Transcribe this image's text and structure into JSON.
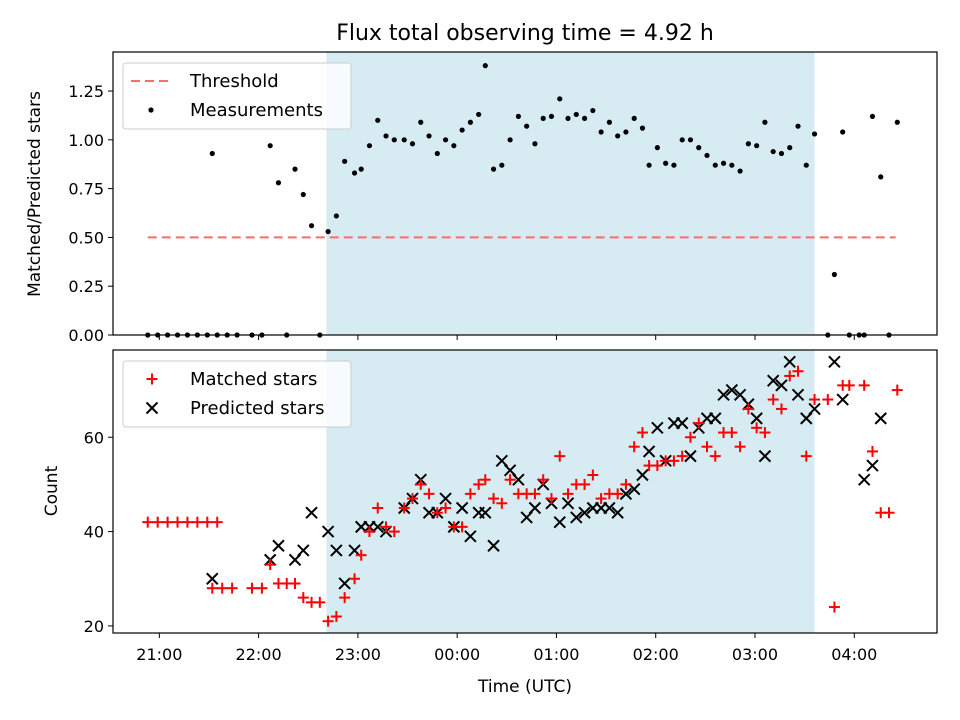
{
  "title": "Flux total observing time = 4.92 h",
  "colors": {
    "threshold": "#ff6b6b",
    "measurement": "#000000",
    "matched": "#ff0000",
    "predicted": "#000000",
    "span": "#add8e6"
  },
  "chart_data": [
    {
      "type": "scatter",
      "ylabel": "Matched/Predicted stars",
      "xlim": [
        "20:32",
        "04:50"
      ],
      "ylim": [
        0,
        1.45
      ],
      "yticks": [
        "0.00",
        "0.25",
        "0.50",
        "0.75",
        "1.00",
        "1.25"
      ],
      "shaded_span": [
        "22:41",
        "03:36"
      ],
      "legend": {
        "position": "top-left",
        "entries": [
          "Threshold",
          "Measurements"
        ]
      },
      "threshold": {
        "name": "Threshold",
        "value": 0.5,
        "x": [
          "20:53",
          "04:25"
        ]
      },
      "series": [
        {
          "name": "Measurements",
          "points": [
            [
              "20:53",
              0.0
            ],
            [
              "20:59",
              0.0
            ],
            [
              "21:05",
              0.0
            ],
            [
              "21:11",
              0.0
            ],
            [
              "21:17",
              0.0
            ],
            [
              "21:23",
              0.0
            ],
            [
              "21:29",
              0.0
            ],
            [
              "21:35",
              0.0
            ],
            [
              "21:32",
              0.93
            ],
            [
              "21:41",
              0.0
            ],
            [
              "21:47",
              0.0
            ],
            [
              "21:56",
              0.0
            ],
            [
              "22:02",
              0.0
            ],
            [
              "22:07",
              0.97
            ],
            [
              "22:12",
              0.78
            ],
            [
              "22:17",
              0.0
            ],
            [
              "22:22",
              0.85
            ],
            [
              "22:27",
              0.72
            ],
            [
              "22:32",
              0.56
            ],
            [
              "22:37",
              0.0
            ],
            [
              "22:42",
              0.53
            ],
            [
              "22:47",
              0.61
            ],
            [
              "22:52",
              0.89
            ],
            [
              "22:58",
              0.83
            ],
            [
              "23:02",
              0.85
            ],
            [
              "23:07",
              0.97
            ],
            [
              "23:12",
              1.1
            ],
            [
              "23:17",
              1.02
            ],
            [
              "23:22",
              1.0
            ],
            [
              "23:28",
              1.0
            ],
            [
              "23:33",
              0.98
            ],
            [
              "23:38",
              1.09
            ],
            [
              "23:43",
              1.02
            ],
            [
              "23:48",
              0.93
            ],
            [
              "23:53",
              1.0
            ],
            [
              "23:58",
              0.97
            ],
            [
              "00:03",
              1.05
            ],
            [
              "00:08",
              1.09
            ],
            [
              "00:13",
              1.13
            ],
            [
              "00:17",
              1.38
            ],
            [
              "00:22",
              0.85
            ],
            [
              "00:27",
              0.87
            ],
            [
              "00:32",
              1.0
            ],
            [
              "00:37",
              1.12
            ],
            [
              "00:42",
              1.07
            ],
            [
              "00:47",
              0.98
            ],
            [
              "00:52",
              1.11
            ],
            [
              "00:57",
              1.12
            ],
            [
              "01:02",
              1.21
            ],
            [
              "01:07",
              1.11
            ],
            [
              "01:12",
              1.13
            ],
            [
              "01:17",
              1.11
            ],
            [
              "01:22",
              1.15
            ],
            [
              "01:27",
              1.04
            ],
            [
              "01:32",
              1.09
            ],
            [
              "01:37",
              1.02
            ],
            [
              "01:42",
              1.04
            ],
            [
              "01:47",
              1.11
            ],
            [
              "01:52",
              1.06
            ],
            [
              "01:56",
              0.87
            ],
            [
              "02:01",
              0.96
            ],
            [
              "02:06",
              0.88
            ],
            [
              "02:11",
              0.87
            ],
            [
              "02:16",
              1.0
            ],
            [
              "02:21",
              1.0
            ],
            [
              "02:26",
              0.96
            ],
            [
              "02:31",
              0.92
            ],
            [
              "02:36",
              0.87
            ],
            [
              "02:41",
              0.88
            ],
            [
              "02:46",
              0.87
            ],
            [
              "02:51",
              0.84
            ],
            [
              "02:56",
              0.98
            ],
            [
              "03:01",
              0.97
            ],
            [
              "03:06",
              1.09
            ],
            [
              "03:11",
              0.94
            ],
            [
              "03:16",
              0.93
            ],
            [
              "03:21",
              0.96
            ],
            [
              "03:26",
              1.07
            ],
            [
              "03:31",
              0.87
            ],
            [
              "03:36",
              1.03
            ],
            [
              "03:44",
              0.0
            ],
            [
              "03:48",
              0.31
            ],
            [
              "03:53",
              1.04
            ],
            [
              "03:57",
              0.0
            ],
            [
              "04:03",
              0.0
            ],
            [
              "04:06",
              0.0
            ],
            [
              "04:11",
              1.12
            ],
            [
              "04:16",
              0.81
            ],
            [
              "04:21",
              0.0
            ],
            [
              "04:26",
              1.09
            ]
          ]
        }
      ]
    },
    {
      "type": "scatter",
      "xlabel": "Time (UTC)",
      "ylabel": "Count",
      "xlim": [
        "20:32",
        "04:50"
      ],
      "ylim": [
        18.5,
        78.5
      ],
      "xticks": [
        "21:00",
        "22:00",
        "23:00",
        "00:00",
        "01:00",
        "02:00",
        "03:00",
        "04:00"
      ],
      "yticks": [
        "20",
        "40",
        "60"
      ],
      "shaded_span": [
        "22:41",
        "03:36"
      ],
      "legend": {
        "position": "top-left",
        "entries": [
          "Matched stars",
          "Predicted stars"
        ]
      },
      "series": [
        {
          "name": "Matched stars",
          "marker": "plus",
          "points": [
            [
              "20:53",
              42
            ],
            [
              "20:59",
              42
            ],
            [
              "21:05",
              42
            ],
            [
              "21:11",
              42
            ],
            [
              "21:17",
              42
            ],
            [
              "21:23",
              42
            ],
            [
              "21:29",
              42
            ],
            [
              "21:35",
              42
            ],
            [
              "21:32",
              28
            ],
            [
              "21:38",
              28
            ],
            [
              "21:44",
              28
            ],
            [
              "21:56",
              28
            ],
            [
              "22:02",
              28
            ],
            [
              "22:07",
              33
            ],
            [
              "22:12",
              29
            ],
            [
              "22:17",
              29
            ],
            [
              "22:22",
              29
            ],
            [
              "22:27",
              26
            ],
            [
              "22:32",
              25
            ],
            [
              "22:37",
              25
            ],
            [
              "22:42",
              21
            ],
            [
              "22:47",
              22
            ],
            [
              "22:52",
              26
            ],
            [
              "22:58",
              30
            ],
            [
              "23:02",
              35
            ],
            [
              "23:07",
              40
            ],
            [
              "23:12",
              45
            ],
            [
              "23:17",
              41
            ],
            [
              "23:22",
              40
            ],
            [
              "23:28",
              45
            ],
            [
              "23:33",
              47
            ],
            [
              "23:38",
              50
            ],
            [
              "23:43",
              48
            ],
            [
              "23:48",
              44
            ],
            [
              "23:53",
              45
            ],
            [
              "23:58",
              41
            ],
            [
              "00:03",
              41
            ],
            [
              "00:08",
              48
            ],
            [
              "00:13",
              50
            ],
            [
              "00:17",
              51
            ],
            [
              "00:22",
              47
            ],
            [
              "00:27",
              46
            ],
            [
              "00:32",
              51
            ],
            [
              "00:37",
              48
            ],
            [
              "00:42",
              48
            ],
            [
              "00:47",
              48
            ],
            [
              "00:52",
              51
            ],
            [
              "00:57",
              47
            ],
            [
              "01:02",
              56
            ],
            [
              "01:07",
              48
            ],
            [
              "01:12",
              50
            ],
            [
              "01:17",
              50
            ],
            [
              "01:22",
              52
            ],
            [
              "01:27",
              47
            ],
            [
              "01:32",
              48
            ],
            [
              "01:37",
              48
            ],
            [
              "01:42",
              50
            ],
            [
              "01:47",
              58
            ],
            [
              "01:52",
              61
            ],
            [
              "01:56",
              54
            ],
            [
              "02:01",
              54
            ],
            [
              "02:06",
              55
            ],
            [
              "02:11",
              55
            ],
            [
              "02:16",
              56
            ],
            [
              "02:21",
              60
            ],
            [
              "02:26",
              63
            ],
            [
              "02:31",
              58
            ],
            [
              "02:36",
              56
            ],
            [
              "02:41",
              61
            ],
            [
              "02:46",
              61
            ],
            [
              "02:51",
              58
            ],
            [
              "02:56",
              66
            ],
            [
              "03:01",
              62
            ],
            [
              "03:06",
              61
            ],
            [
              "03:11",
              68
            ],
            [
              "03:16",
              66
            ],
            [
              "03:21",
              73
            ],
            [
              "03:26",
              74
            ],
            [
              "03:31",
              56
            ],
            [
              "03:36",
              68
            ],
            [
              "03:44",
              68
            ],
            [
              "03:48",
              24
            ],
            [
              "03:53",
              71
            ],
            [
              "03:57",
              71
            ],
            [
              "04:06",
              71
            ],
            [
              "04:11",
              57
            ],
            [
              "04:16",
              44
            ],
            [
              "04:21",
              44
            ],
            [
              "04:26",
              70
            ]
          ]
        },
        {
          "name": "Predicted stars",
          "marker": "x",
          "points": [
            [
              "21:32",
              30
            ],
            [
              "22:07",
              34
            ],
            [
              "22:12",
              37
            ],
            [
              "22:22",
              34
            ],
            [
              "22:27",
              36
            ],
            [
              "22:32",
              44
            ],
            [
              "22:42",
              40
            ],
            [
              "22:47",
              36
            ],
            [
              "22:52",
              29
            ],
            [
              "22:58",
              36
            ],
            [
              "23:02",
              41
            ],
            [
              "23:07",
              41
            ],
            [
              "23:12",
              41
            ],
            [
              "23:17",
              40
            ],
            [
              "23:28",
              45
            ],
            [
              "23:33",
              47
            ],
            [
              "23:38",
              51
            ],
            [
              "23:43",
              44
            ],
            [
              "23:48",
              44
            ],
            [
              "23:53",
              47
            ],
            [
              "23:58",
              41
            ],
            [
              "00:03",
              45
            ],
            [
              "00:08",
              39
            ],
            [
              "00:13",
              44
            ],
            [
              "00:17",
              44
            ],
            [
              "00:22",
              37
            ],
            [
              "00:27",
              55
            ],
            [
              "00:32",
              53
            ],
            [
              "00:37",
              51
            ],
            [
              "00:42",
              43
            ],
            [
              "00:47",
              45
            ],
            [
              "00:52",
              50
            ],
            [
              "00:57",
              46
            ],
            [
              "01:02",
              42
            ],
            [
              "01:07",
              46
            ],
            [
              "01:12",
              43
            ],
            [
              "01:17",
              44
            ],
            [
              "01:22",
              45
            ],
            [
              "01:27",
              45
            ],
            [
              "01:32",
              45
            ],
            [
              "01:37",
              44
            ],
            [
              "01:42",
              48
            ],
            [
              "01:47",
              49
            ],
            [
              "01:52",
              52
            ],
            [
              "01:56",
              57
            ],
            [
              "02:01",
              62
            ],
            [
              "02:06",
              55
            ],
            [
              "02:11",
              63
            ],
            [
              "02:16",
              63
            ],
            [
              "02:21",
              56
            ],
            [
              "02:26",
              62
            ],
            [
              "02:31",
              64
            ],
            [
              "02:36",
              64
            ],
            [
              "02:41",
              69
            ],
            [
              "02:46",
              70
            ],
            [
              "02:51",
              69
            ],
            [
              "02:56",
              67
            ],
            [
              "03:01",
              64
            ],
            [
              "03:06",
              56
            ],
            [
              "03:11",
              72
            ],
            [
              "03:16",
              71
            ],
            [
              "03:21",
              76
            ],
            [
              "03:26",
              69
            ],
            [
              "03:31",
              64
            ],
            [
              "03:36",
              66
            ],
            [
              "03:48",
              76
            ],
            [
              "03:53",
              68
            ],
            [
              "04:06",
              51
            ],
            [
              "04:11",
              54
            ],
            [
              "04:16",
              64
            ]
          ]
        }
      ]
    }
  ]
}
